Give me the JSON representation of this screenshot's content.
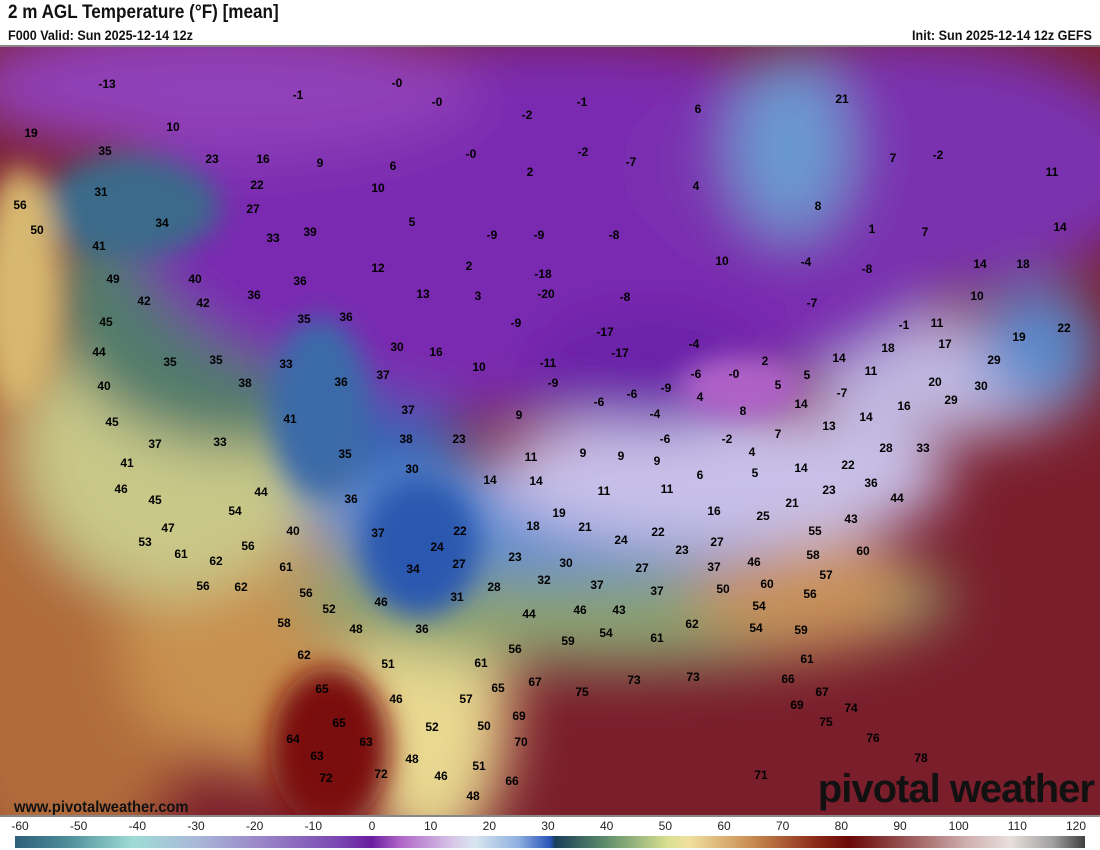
{
  "header": {
    "title": "2 m AGL Temperature (°F) [mean]",
    "valid": "F000 Valid: Sun 2025-12-14 12z",
    "init": "Init: Sun 2025-12-14 12z GEFS"
  },
  "map": {
    "watermark_url": "www.pivotalweather.com",
    "logo": "pivotal weather",
    "temperature_labels": [
      "-13",
      "19",
      "10",
      "-1",
      "-0",
      "-0",
      "-1",
      "-2",
      "6",
      "21",
      "-2",
      "7",
      "11",
      "35",
      "23",
      "16",
      "9",
      "6",
      "-0",
      "-2",
      "-7",
      "2",
      "31",
      "22",
      "10",
      "4",
      "8",
      "56",
      "34",
      "27",
      "5",
      "-9",
      "-9",
      "-8",
      "1",
      "7",
      "14",
      "50",
      "33",
      "39",
      "41",
      "10",
      "-4",
      "-8",
      "14",
      "18",
      "12",
      "2",
      "-18",
      "49",
      "40",
      "36",
      "13",
      "3",
      "-20",
      "-8",
      "-7",
      "10",
      "42",
      "42",
      "36",
      "35",
      "36",
      "-9",
      "-17",
      "-1",
      "11",
      "22",
      "45",
      "19",
      "44",
      "35",
      "35",
      "33",
      "30",
      "16",
      "-17",
      "-4",
      "17",
      "18",
      "29",
      "10",
      "-11",
      "2",
      "14",
      "11",
      "40",
      "38",
      "36",
      "37",
      "-9",
      "-6",
      "-9",
      "-6",
      "-0",
      "5",
      "5",
      "-7",
      "20",
      "30",
      "45",
      "41",
      "37",
      "9",
      "-6",
      "-4",
      "4",
      "8",
      "14",
      "14",
      "16",
      "29",
      "37",
      "33",
      "35",
      "38",
      "23",
      "9",
      "9",
      "-6",
      "-2",
      "7",
      "13",
      "28",
      "33",
      "41",
      "30",
      "11",
      "9",
      "4",
      "14",
      "22",
      "46",
      "14",
      "14",
      "6",
      "5",
      "36",
      "45",
      "44",
      "36",
      "11",
      "11",
      "21",
      "23",
      "44",
      "54",
      "19",
      "16",
      "25",
      "47",
      "40",
      "37",
      "22",
      "18",
      "21",
      "24",
      "22",
      "27",
      "55",
      "43",
      "53",
      "56",
      "24",
      "23",
      "30",
      "23",
      "46",
      "58",
      "60",
      "61",
      "62",
      "61",
      "34",
      "27",
      "32",
      "37",
      "57",
      "56",
      "62",
      "56",
      "31",
      "28",
      "37",
      "27",
      "37",
      "50",
      "60",
      "56",
      "52",
      "46",
      "44",
      "46",
      "43",
      "54",
      "58",
      "48",
      "36",
      "62",
      "54",
      "59",
      "59",
      "54",
      "61",
      "56",
      "62",
      "51",
      "61",
      "61",
      "65",
      "65",
      "67",
      "75",
      "73",
      "73",
      "66",
      "67",
      "46",
      "57",
      "69",
      "74",
      "65",
      "69",
      "75",
      "52",
      "50",
      "64",
      "63",
      "70",
      "76",
      "63",
      "48",
      "51",
      "78",
      "72",
      "72",
      "46",
      "66",
      "71",
      "48"
    ]
  },
  "colorbar": {
    "unit": "°F",
    "ticks": [
      "-60",
      "-50",
      "-40",
      "-30",
      "-20",
      "-10",
      "0",
      "10",
      "20",
      "30",
      "40",
      "50",
      "60",
      "70",
      "80",
      "90",
      "100",
      "110",
      "120"
    ]
  }
}
